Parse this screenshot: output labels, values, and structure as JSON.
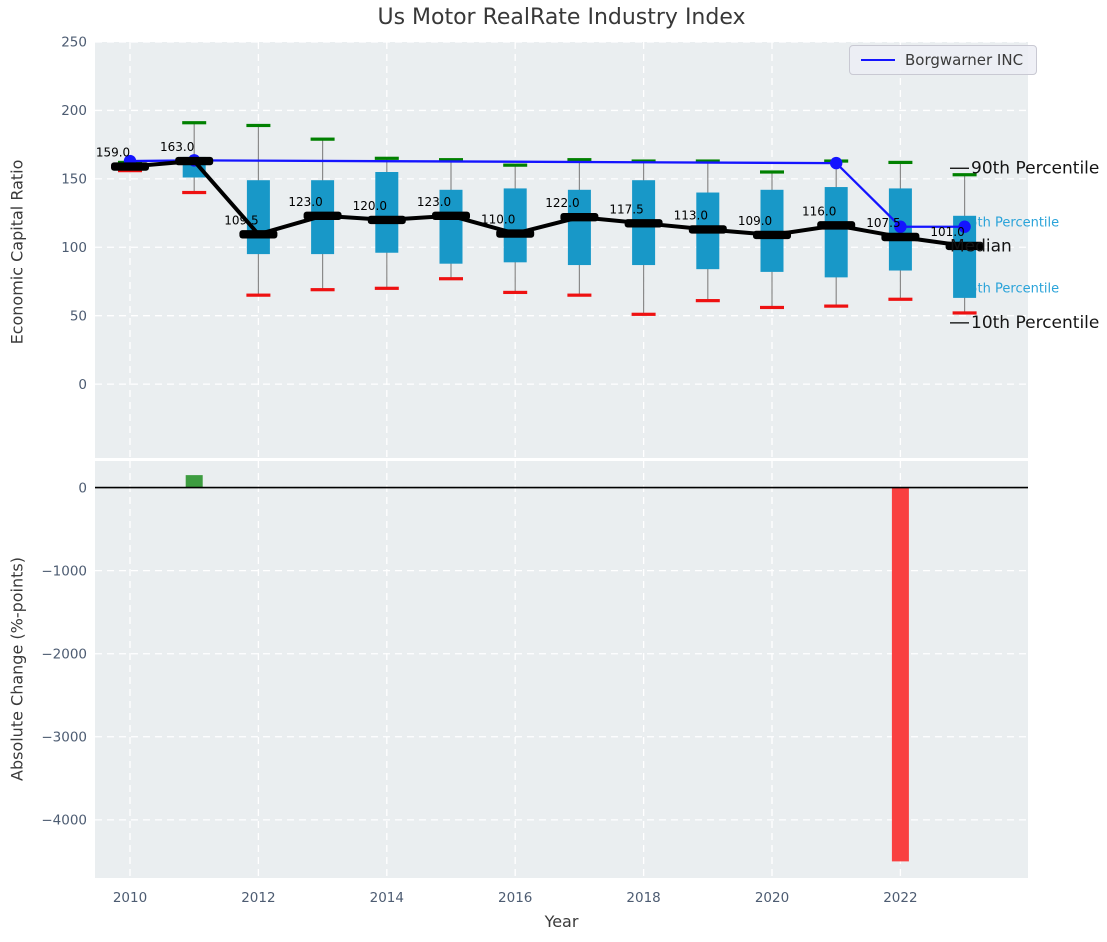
{
  "colors": {
    "figure_bg": "#ffffff",
    "axes_bg": "#eaeef0",
    "grid": "#ffffff",
    "box_fill": "#1898c8",
    "whisker": "#8a8a8a",
    "p90_cap": "#008000",
    "p10_cap": "#ee1111",
    "median_line": "#000000",
    "company_line": "#1414ff",
    "cyan_label": "#2aa3d9",
    "black_label": "#141414",
    "tick_label": "#4d5c72",
    "title_color": "#383838",
    "bar_positive": "#3d9c40",
    "bar_negative": "#f94040"
  },
  "chart_data": [
    {
      "type": "boxplot+line",
      "title": "Us Motor RealRate Industry Index",
      "ylabel": "Economic Capital Ratio",
      "ylim": [
        -54,
        250
      ],
      "yticks": [
        0,
        50,
        100,
        150,
        200,
        250
      ],
      "grid": "white-dashed",
      "legend_position": "upper right",
      "years": [
        2010,
        2011,
        2012,
        2013,
        2014,
        2015,
        2016,
        2017,
        2018,
        2019,
        2020,
        2021,
        2022,
        2023
      ],
      "percentile_90": [
        162,
        191,
        189,
        179,
        165,
        164,
        160,
        164,
        163,
        163,
        155,
        163,
        162,
        153
      ],
      "q3": [
        161,
        166,
        149,
        149,
        155,
        142,
        143,
        142,
        149,
        140,
        142,
        144,
        143,
        123
      ],
      "median": [
        159,
        163,
        109.5,
        123,
        120,
        123,
        110,
        122,
        117.5,
        113,
        109,
        116,
        107.5,
        101
      ],
      "q1": [
        157,
        151,
        95,
        95,
        96,
        88,
        89,
        87,
        87,
        84,
        82,
        78,
        83,
        63
      ],
      "percentile_10": [
        156,
        140,
        65,
        69,
        70,
        77,
        67,
        65,
        51,
        61,
        56,
        57,
        62,
        52
      ],
      "median_labels": [
        "159.0",
        "163.0",
        "109.5",
        "123.0",
        "120.0",
        "123.0",
        "110.0",
        "122.0",
        "117.5",
        "113.0",
        "109.0",
        "116.0",
        "107.5",
        "101.0"
      ],
      "series": [
        {
          "name": "Borgwarner INC",
          "x": [
            2010,
            2011,
            2021,
            2022,
            2023
          ],
          "y": [
            163,
            163.5,
            161.5,
            115,
            115
          ]
        }
      ],
      "annotations": [
        {
          "text": "90th Percentile",
          "style": "major",
          "value": 157,
          "leader": true
        },
        {
          "text": "75th Percentile",
          "style": "minor",
          "value": 118,
          "leader": false
        },
        {
          "text": "Median",
          "style": "major",
          "value": 100,
          "leader": false
        },
        {
          "text": "25th Percentile",
          "style": "minor",
          "value": 70,
          "leader": false
        },
        {
          "text": "10th Percentile",
          "style": "major",
          "value": 44,
          "leader": true
        }
      ]
    },
    {
      "type": "bar",
      "ylabel": "Absolute Change (%-points)",
      "xlabel": "Year",
      "ylim": [
        -4700,
        320
      ],
      "yticks": [
        0,
        -1000,
        -2000,
        -3000,
        -4000
      ],
      "xticks": [
        2010,
        2012,
        2014,
        2016,
        2018,
        2020,
        2022
      ],
      "zero_line": true,
      "bars": [
        {
          "year": 2011,
          "value": 150,
          "direction": "positive"
        },
        {
          "year": 2022,
          "value": -4500,
          "direction": "negative"
        }
      ]
    }
  ]
}
